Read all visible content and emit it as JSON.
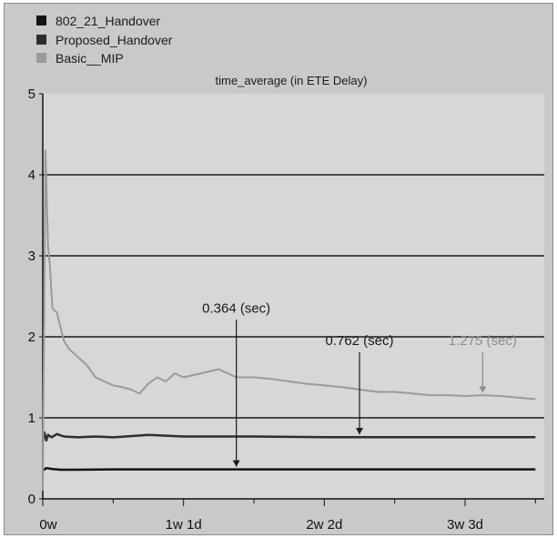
{
  "chart_data": {
    "type": "line",
    "title": "time_average (in ETE Delay)",
    "xlabel": "",
    "ylabel": "",
    "ylim": [
      0,
      5
    ],
    "grid": true,
    "legend_placement": "top-left",
    "y_ticks": [
      "0",
      "1",
      "2",
      "3",
      "4",
      "5"
    ],
    "x_ticks": [
      "0w",
      "1w 1d",
      "2w 2d",
      "3w 3d"
    ],
    "x_tick_values_days": [
      0,
      8,
      16,
      24
    ],
    "series": [
      {
        "name": "802_21_Handover",
        "color": "#141414",
        "x": [
          0,
          0.2,
          0.5,
          1,
          2,
          4,
          8,
          12,
          16,
          20,
          24,
          28
        ],
        "values": [
          0.35,
          0.38,
          0.37,
          0.36,
          0.36,
          0.364,
          0.364,
          0.364,
          0.364,
          0.364,
          0.364,
          0.364
        ]
      },
      {
        "name": "Proposed_Handover",
        "color": "#2e2e2e",
        "x": [
          0,
          0.1,
          0.2,
          0.3,
          0.5,
          0.8,
          1.2,
          2,
          3,
          4,
          6,
          8,
          12,
          16,
          20,
          24,
          28
        ],
        "values": [
          0.7,
          0.82,
          0.72,
          0.79,
          0.76,
          0.8,
          0.77,
          0.76,
          0.77,
          0.76,
          0.79,
          0.77,
          0.77,
          0.762,
          0.762,
          0.762,
          0.762
        ]
      },
      {
        "name": "Basic__MIP",
        "color": "#9a9a9a",
        "x": [
          0,
          0.15,
          0.3,
          0.4,
          0.55,
          0.8,
          1.2,
          1.5,
          2,
          2.5,
          3,
          3.5,
          4,
          4.5,
          5,
          5.5,
          6,
          6.5,
          7,
          7.5,
          8,
          9,
          10,
          11,
          12,
          13,
          14,
          15,
          16,
          17,
          18,
          19,
          20,
          21,
          22,
          23,
          24,
          25,
          26,
          27,
          28
        ],
        "values": [
          0.1,
          4.3,
          3.1,
          2.9,
          2.35,
          2.3,
          1.95,
          1.85,
          1.75,
          1.65,
          1.5,
          1.45,
          1.4,
          1.38,
          1.35,
          1.3,
          1.42,
          1.5,
          1.45,
          1.55,
          1.5,
          1.55,
          1.6,
          1.5,
          1.5,
          1.48,
          1.45,
          1.42,
          1.4,
          1.38,
          1.35,
          1.32,
          1.32,
          1.3,
          1.28,
          1.28,
          1.27,
          1.28,
          1.27,
          1.25,
          1.23
        ]
      }
    ],
    "annotations": [
      {
        "text": "0.364 (sec)",
        "x": 11,
        "y": 0.364,
        "color": "#1a1a1a"
      },
      {
        "text": "0.762 (sec)",
        "x": 18,
        "y": 0.762,
        "color": "#1a1a1a"
      },
      {
        "text": "1.275 (sec)",
        "x": 25,
        "y": 1.275,
        "color": "#8c8c8c"
      }
    ]
  }
}
